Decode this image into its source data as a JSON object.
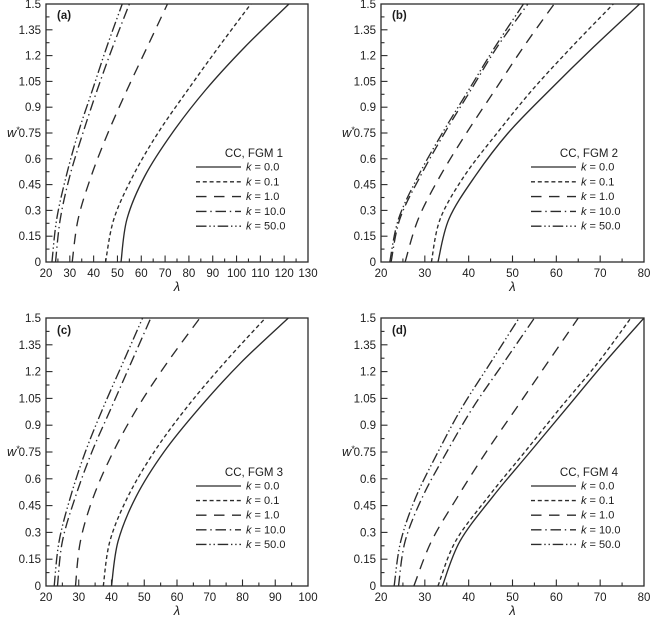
{
  "figure": {
    "background": "#ffffff",
    "line_color": "#2b2b2b",
    "text_color": "#1c1c1c"
  },
  "chart_data": [
    {
      "type": "line",
      "panel_label": "(a)",
      "legend_title": "CC, FGM 1",
      "legend_position": "right-center",
      "xlabel": "λ",
      "ylabel": "w*",
      "xlim": [
        20,
        130
      ],
      "ylim": [
        0,
        1.5
      ],
      "x_major_step": 10,
      "x_minor_step": 5,
      "y_major_step": 0.15,
      "y_minor_step": 0.075,
      "grid": false,
      "w_star": [
        0,
        0.25,
        0.5,
        0.75,
        1.0,
        1.25,
        1.5
      ],
      "series": [
        {
          "label": "k = 0.0",
          "dash": "solid",
          "lambda": [
            51.5,
            54.0,
            61.5,
            73.0,
            87.0,
            103.5,
            122.0
          ]
        },
        {
          "label": "k = 0.1",
          "dash": "short-dash",
          "lambda": [
            45.0,
            48.5,
            56.5,
            67.0,
            79.5,
            92.5,
            106.0
          ]
        },
        {
          "label": "k = 1.0",
          "dash": "long-dash",
          "lambda": [
            31.0,
            33.5,
            39.0,
            46.0,
            54.0,
            62.5,
            71.0
          ]
        },
        {
          "label": "k = 10.0",
          "dash": "dash-dot",
          "lambda": [
            24.0,
            26.0,
            30.0,
            35.5,
            41.5,
            48.0,
            55.0
          ]
        },
        {
          "label": "k = 50.0",
          "dash": "dash-dot-dot",
          "lambda": [
            22.5,
            24.5,
            28.5,
            33.5,
            39.5,
            45.5,
            52.0
          ]
        }
      ]
    },
    {
      "type": "line",
      "panel_label": "(b)",
      "legend_title": "CC, FGM 2",
      "legend_position": "right-center",
      "xlabel": "λ",
      "ylabel": "w*",
      "xlim": [
        20,
        80
      ],
      "ylim": [
        0,
        1.5
      ],
      "x_major_step": 10,
      "x_minor_step": 5,
      "y_major_step": 0.15,
      "y_minor_step": 0.075,
      "grid": false,
      "w_star": [
        0,
        0.25,
        0.5,
        0.75,
        1.0,
        1.25,
        1.5
      ],
      "series": [
        {
          "label": "k = 0.0",
          "dash": "solid",
          "lambda": [
            33.0,
            35.5,
            41.5,
            49.0,
            58.5,
            68.5,
            79.0
          ]
        },
        {
          "label": "k = 0.1",
          "dash": "short-dash",
          "lambda": [
            31.5,
            33.5,
            39.0,
            46.5,
            54.5,
            63.5,
            73.0
          ]
        },
        {
          "label": "k = 1.0",
          "dash": "long-dash",
          "lambda": [
            25.5,
            28.5,
            33.5,
            39.5,
            46.0,
            52.5,
            59.5
          ]
        },
        {
          "label": "k = 10.0",
          "dash": "dash-dot",
          "lambda": [
            22.3,
            24.3,
            29.0,
            34.5,
            40.5,
            46.5,
            53.5
          ]
        },
        {
          "label": "k = 50.0",
          "dash": "dash-dot-dot",
          "lambda": [
            22.0,
            24.0,
            28.5,
            34.0,
            40.0,
            46.0,
            52.5
          ]
        }
      ]
    },
    {
      "type": "line",
      "panel_label": "(c)",
      "legend_title": "CC, FGM 3",
      "legend_position": "right-center",
      "xlabel": "λ",
      "ylabel": "w*",
      "xlim": [
        20,
        100
      ],
      "ylim": [
        0,
        1.5
      ],
      "x_major_step": 10,
      "x_minor_step": 5,
      "y_major_step": 0.15,
      "y_minor_step": 0.075,
      "grid": false,
      "w_star": [
        0,
        0.25,
        0.5,
        0.75,
        1.0,
        1.25,
        1.5
      ],
      "series": [
        {
          "label": "k = 0.0",
          "dash": "solid",
          "lambda": [
            40.0,
            42.0,
            47.5,
            56.0,
            67.0,
            79.5,
            94.0
          ]
        },
        {
          "label": "k = 0.1",
          "dash": "short-dash",
          "lambda": [
            37.5,
            39.5,
            45.0,
            53.0,
            63.0,
            74.5,
            87.0
          ]
        },
        {
          "label": "k = 1.0",
          "dash": "long-dash",
          "lambda": [
            29.0,
            30.5,
            34.5,
            40.5,
            48.0,
            57.0,
            67.0
          ]
        },
        {
          "label": "k = 10.0",
          "dash": "dash-dot",
          "lambda": [
            23.5,
            25.0,
            29.0,
            34.0,
            40.0,
            46.0,
            52.0
          ]
        },
        {
          "label": "k = 50.0",
          "dash": "dash-dot-dot",
          "lambda": [
            22.5,
            24.0,
            27.5,
            32.0,
            37.5,
            43.5,
            49.5
          ]
        }
      ]
    },
    {
      "type": "line",
      "panel_label": "(d)",
      "legend_title": "CC, FGM 4",
      "legend_position": "right-center",
      "xlabel": "λ",
      "ylabel": "w*",
      "xlim": [
        20,
        80
      ],
      "ylim": [
        0,
        1.5
      ],
      "x_major_step": 10,
      "x_minor_step": 5,
      "y_major_step": 0.15,
      "y_minor_step": 0.075,
      "grid": false,
      "w_star": [
        0,
        0.25,
        0.5,
        0.75,
        1.0,
        1.25,
        1.5
      ],
      "series": [
        {
          "label": "k = 0.0",
          "dash": "solid",
          "lambda": [
            34.0,
            38.0,
            45.5,
            54.0,
            62.5,
            71.0,
            80.0
          ]
        },
        {
          "label": "k = 0.1",
          "dash": "short-dash",
          "lambda": [
            33.0,
            37.0,
            44.5,
            52.8,
            61.0,
            69.5,
            77.0
          ]
        },
        {
          "label": "k = 1.0",
          "dash": "long-dash",
          "lambda": [
            27.5,
            31.5,
            37.5,
            44.0,
            51.0,
            58.0,
            65.0
          ]
        },
        {
          "label": "k = 10.0",
          "dash": "dash-dot",
          "lambda": [
            24.0,
            25.5,
            29.5,
            35.0,
            41.0,
            48.0,
            55.0
          ]
        },
        {
          "label": "k = 50.0",
          "dash": "dash-dot-dot",
          "lambda": [
            23.0,
            24.5,
            28.0,
            33.0,
            38.5,
            45.0,
            51.5
          ]
        }
      ]
    }
  ]
}
